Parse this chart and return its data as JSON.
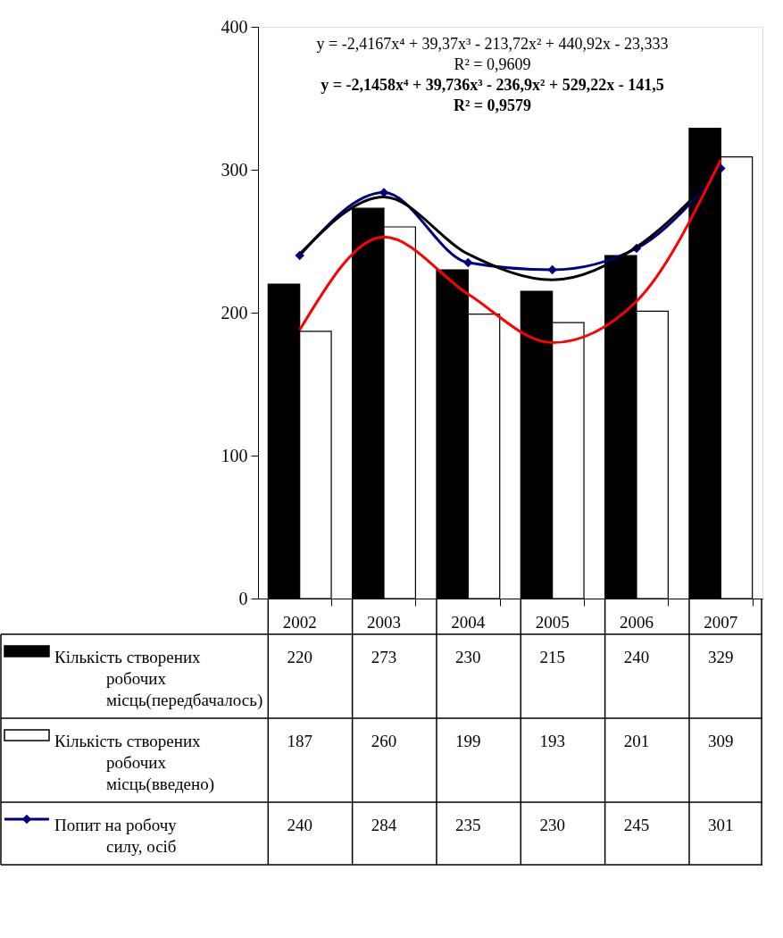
{
  "chart_data": {
    "type": "bar",
    "categories": [
      "2002",
      "2003",
      "2004",
      "2005",
      "2006",
      "2007"
    ],
    "ylim": [
      0,
      400
    ],
    "yticks": [
      0,
      100,
      200,
      300,
      400
    ],
    "grid": false,
    "legend": "bottom left",
    "series": [
      {
        "name": "Кількість створених робочих місць(передбачалось)",
        "color": "#000000",
        "values": [
          220,
          273,
          230,
          215,
          240,
          329
        ],
        "value_labels": [
          "220",
          "273",
          "230",
          "215",
          "240",
          "329"
        ]
      },
      {
        "name": "Кількість створених робочих місць(введено)",
        "color": "#ffffff",
        "values": [
          187,
          260,
          199,
          193,
          201,
          309
        ],
        "value_labels": [
          "187",
          "260",
          "199",
          "193",
          "201",
          "309"
        ]
      },
      {
        "name": "Попит на робочу силу, осіб",
        "type": "line",
        "color": "#000080",
        "marker": "diamond",
        "values": [
          240,
          284,
          235,
          230,
          245,
          301
        ],
        "value_labels": [
          "240",
          "284",
          "235",
          "230",
          "245",
          "301"
        ]
      },
      {
        "type": "line",
        "color": "#000000",
        "marker": "none",
        "values": [
          241,
          281,
          241,
          223,
          246,
          301
        ]
      },
      {
        "type": "line",
        "color": "#ff0000",
        "marker": "none",
        "values": [
          188,
          253,
          213,
          179,
          208,
          307
        ]
      }
    ],
    "annotations": [
      "y = -2,4167x⁴ + 39,37x³ - 213,72x² + 440,92x - 23,333",
      "R² = 0,9609",
      "y = -2,1458x⁴ + 39,736x³ - 236,9x² + 529,22x - 141,5",
      "R² = 0,9579"
    ]
  }
}
